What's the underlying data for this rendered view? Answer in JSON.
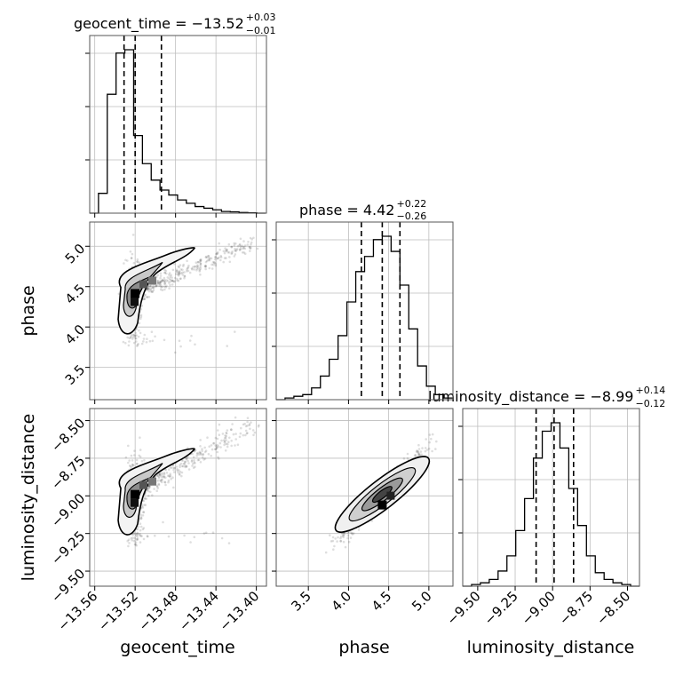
{
  "chart_data": {
    "type": "corner",
    "parameters": [
      {
        "key": "geocent_time",
        "label": "geocent_time",
        "title": "geocent_time = −13.52",
        "title_upper": "+0.03",
        "title_lower": "−0.01",
        "range": [
          -13.565,
          -13.39
        ],
        "ticks": [
          -13.56,
          -13.52,
          -13.48,
          -13.44,
          -13.4
        ],
        "tick_labels": [
          "−13.56",
          "−13.52",
          "−13.48",
          "−13.44",
          "−13.40"
        ],
        "quantiles": [
          -13.531,
          -13.52,
          -13.494
        ],
        "hist_edges": [
          -13.565,
          -13.5563,
          -13.5476,
          -13.5389,
          -13.5302,
          -13.5215,
          -13.5128,
          -13.5041,
          -13.4954,
          -13.4867,
          -13.478,
          -13.4693,
          -13.4606,
          -13.4519,
          -13.4432,
          -13.4345,
          -13.4258,
          -13.4171,
          -13.4084,
          -13.3997,
          -13.391
        ],
        "hist_counts": [
          0,
          12,
          72,
          97,
          99,
          47,
          30,
          20,
          14,
          11,
          8,
          6,
          4,
          3,
          2,
          1,
          0.8,
          0.4,
          0.2,
          0
        ]
      },
      {
        "key": "phase",
        "label": "phase",
        "title": "phase = 4.42",
        "title_upper": "+0.22",
        "title_lower": "−0.26",
        "range": [
          3.1,
          5.3
        ],
        "ticks": [
          3.5,
          4.0,
          4.5,
          5.0
        ],
        "tick_labels": [
          "3.5",
          "4.0",
          "4.5",
          "5.0"
        ],
        "quantiles": [
          4.16,
          4.42,
          4.64
        ],
        "hist_edges": [
          3.1,
          3.21,
          3.32,
          3.43,
          3.54,
          3.65,
          3.76,
          3.87,
          3.98,
          4.09,
          4.2,
          4.31,
          4.42,
          4.53,
          4.64,
          4.75,
          4.86,
          4.97,
          5.08,
          5.19,
          5.3
        ],
        "hist_counts": [
          0,
          1,
          2,
          3,
          7,
          14,
          24,
          38,
          58,
          76,
          85,
          95,
          97,
          88,
          68,
          42,
          20,
          8,
          3,
          1
        ]
      },
      {
        "key": "luminosity_distance",
        "label": "luminosity_distance",
        "title": "luminosity_distance = −8.99",
        "title_upper": "+0.14",
        "title_lower": "−0.12",
        "range": [
          -9.6,
          -8.42
        ],
        "ticks": [
          -9.5,
          -9.25,
          -9.0,
          -8.75,
          -8.5
        ],
        "tick_labels": [
          "−9.50",
          "−9.25",
          "−9.00",
          "−8.75",
          "−8.50"
        ],
        "quantiles": [
          -9.11,
          -8.99,
          -8.86
        ],
        "hist_edges": [
          -9.6,
          -9.541,
          -9.482,
          -9.423,
          -9.364,
          -9.305,
          -9.246,
          -9.187,
          -9.128,
          -9.069,
          -9.01,
          -8.951,
          -8.892,
          -8.833,
          -8.774,
          -8.715,
          -8.656,
          -8.597,
          -8.538,
          -8.479,
          -8.42
        ],
        "hist_counts": [
          0,
          1,
          2,
          4,
          9,
          18,
          33,
          52,
          76,
          92,
          97,
          82,
          58,
          36,
          18,
          8,
          4,
          2,
          1,
          0
        ]
      }
    ],
    "pairs": [
      {
        "x": "geocent_time",
        "y": "phase",
        "peak": [
          -13.521,
          4.36
        ],
        "contour_level_count": 4
      },
      {
        "x": "geocent_time",
        "y": "luminosity_distance",
        "peak": [
          -13.521,
          -9.02
        ],
        "contour_level_count": 4
      },
      {
        "x": "phase",
        "y": "luminosity_distance",
        "peak": [
          4.42,
          -8.99
        ],
        "contour_level_count": 4
      }
    ],
    "grid": true
  }
}
